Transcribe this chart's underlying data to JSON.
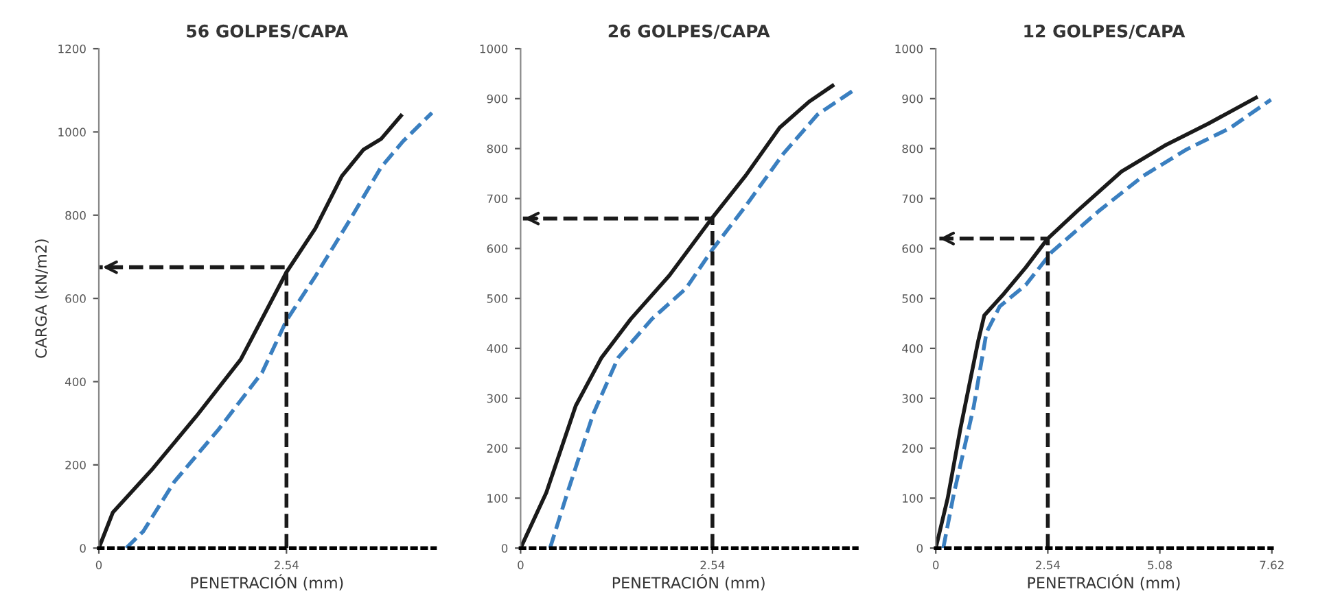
{
  "chart_data": [
    {
      "type": "line",
      "title": "56 GOLPES/CAPA",
      "xlabel": "PENETRACIÓN (mm)",
      "ylabel": "CARGA (kN/m2)",
      "xlim": [
        0,
        4.55
      ],
      "ylim": [
        0,
        1200
      ],
      "xticks": [
        0,
        2.54
      ],
      "yticks": [
        0,
        200,
        400,
        600,
        800,
        1000,
        1200
      ],
      "grid": false,
      "legend": false,
      "series": [
        {
          "color": "#1a1a1a",
          "line_style": "solid",
          "x": [
            0,
            0.19,
            0.73,
            1.32,
            1.92,
            2.54,
            2.93,
            3.29,
            3.58,
            3.82,
            4.09
          ],
          "values": [
            0,
            86,
            191,
            317,
            453,
            663,
            768,
            894,
            957,
            983,
            1039
          ]
        },
        {
          "color": "#3a7fc0",
          "line_style": "dashed",
          "x": [
            0.37,
            0.6,
            1.02,
            1.62,
            2.21,
            2.54,
            2.93,
            3.4,
            3.82,
            4.12,
            4.51
          ],
          "values": [
            0,
            40,
            159,
            285,
            422,
            547,
            653,
            789,
            915,
            978,
            1046
          ]
        },
        {
          "color": "#1a1a1a",
          "line_style": "dashed",
          "x": [
            2.54,
            2.54,
            0
          ],
          "values": [
            0,
            675,
            675
          ]
        }
      ]
    },
    {
      "type": "line",
      "title": "26 GOLPES/CAPA",
      "xlabel": "PENETRACIÓN (mm)",
      "xlim": [
        0,
        4.45
      ],
      "ylim": [
        0,
        1000
      ],
      "xticks": [
        0,
        2.54
      ],
      "yticks": [
        0,
        100,
        200,
        300,
        400,
        500,
        600,
        700,
        800,
        900,
        1000
      ],
      "grid": false,
      "legend": false,
      "series": [
        {
          "color": "#1a1a1a",
          "line_style": "solid",
          "x": [
            0,
            0.34,
            0.73,
            1.07,
            1.46,
            1.97,
            2.54,
            2.98,
            3.43,
            3.82,
            4.13
          ],
          "values": [
            0,
            111,
            285,
            381,
            459,
            546,
            662,
            746,
            842,
            894,
            926
          ]
        },
        {
          "color": "#3a7fc0",
          "line_style": "dashed",
          "x": [
            0.39,
            0.62,
            0.96,
            1.29,
            1.74,
            2.19,
            2.54,
            2.98,
            3.48,
            3.93,
            4.44
          ],
          "values": [
            0,
            111,
            268,
            381,
            459,
            520,
            598,
            685,
            790,
            868,
            920
          ]
        },
        {
          "color": "#1a1a1a",
          "line_style": "dashed",
          "x": [
            2.54,
            2.54,
            0
          ],
          "values": [
            0,
            660,
            660
          ]
        }
      ]
    },
    {
      "type": "line",
      "title": "12 GOLPES/CAPA",
      "xlabel": "PENETRACIÓN (mm)",
      "xlim": [
        0,
        7.62
      ],
      "ylim": [
        0,
        1000
      ],
      "xticks": [
        0,
        2.54,
        5.08,
        7.62
      ],
      "yticks": [
        0,
        100,
        200,
        300,
        400,
        500,
        600,
        700,
        800,
        900,
        1000
      ],
      "grid": false,
      "legend": false,
      "series": [
        {
          "color": "#1a1a1a",
          "line_style": "solid",
          "x": [
            0,
            0.27,
            0.56,
            0.96,
            1.1,
            1.55,
            2.04,
            2.53,
            3.22,
            4.21,
            5.19,
            6.18,
            7.26
          ],
          "values": [
            0,
            100,
            240,
            414,
            466,
            510,
            562,
            619,
            676,
            754,
            806,
            850,
            902
          ]
        },
        {
          "color": "#3a7fc0",
          "line_style": "dashed",
          "x": [
            0.17,
            0.41,
            0.86,
            1.15,
            1.45,
            2.04,
            2.63,
            3.71,
            4.7,
            5.68,
            6.67,
            7.6
          ],
          "values": [
            0,
            109,
            283,
            432,
            484,
            527,
            593,
            676,
            745,
            798,
            841,
            898
          ]
        },
        {
          "color": "#1a1a1a",
          "line_style": "dashed",
          "x": [
            2.54,
            2.54,
            0
          ],
          "values": [
            0,
            620,
            620
          ]
        }
      ]
    }
  ]
}
